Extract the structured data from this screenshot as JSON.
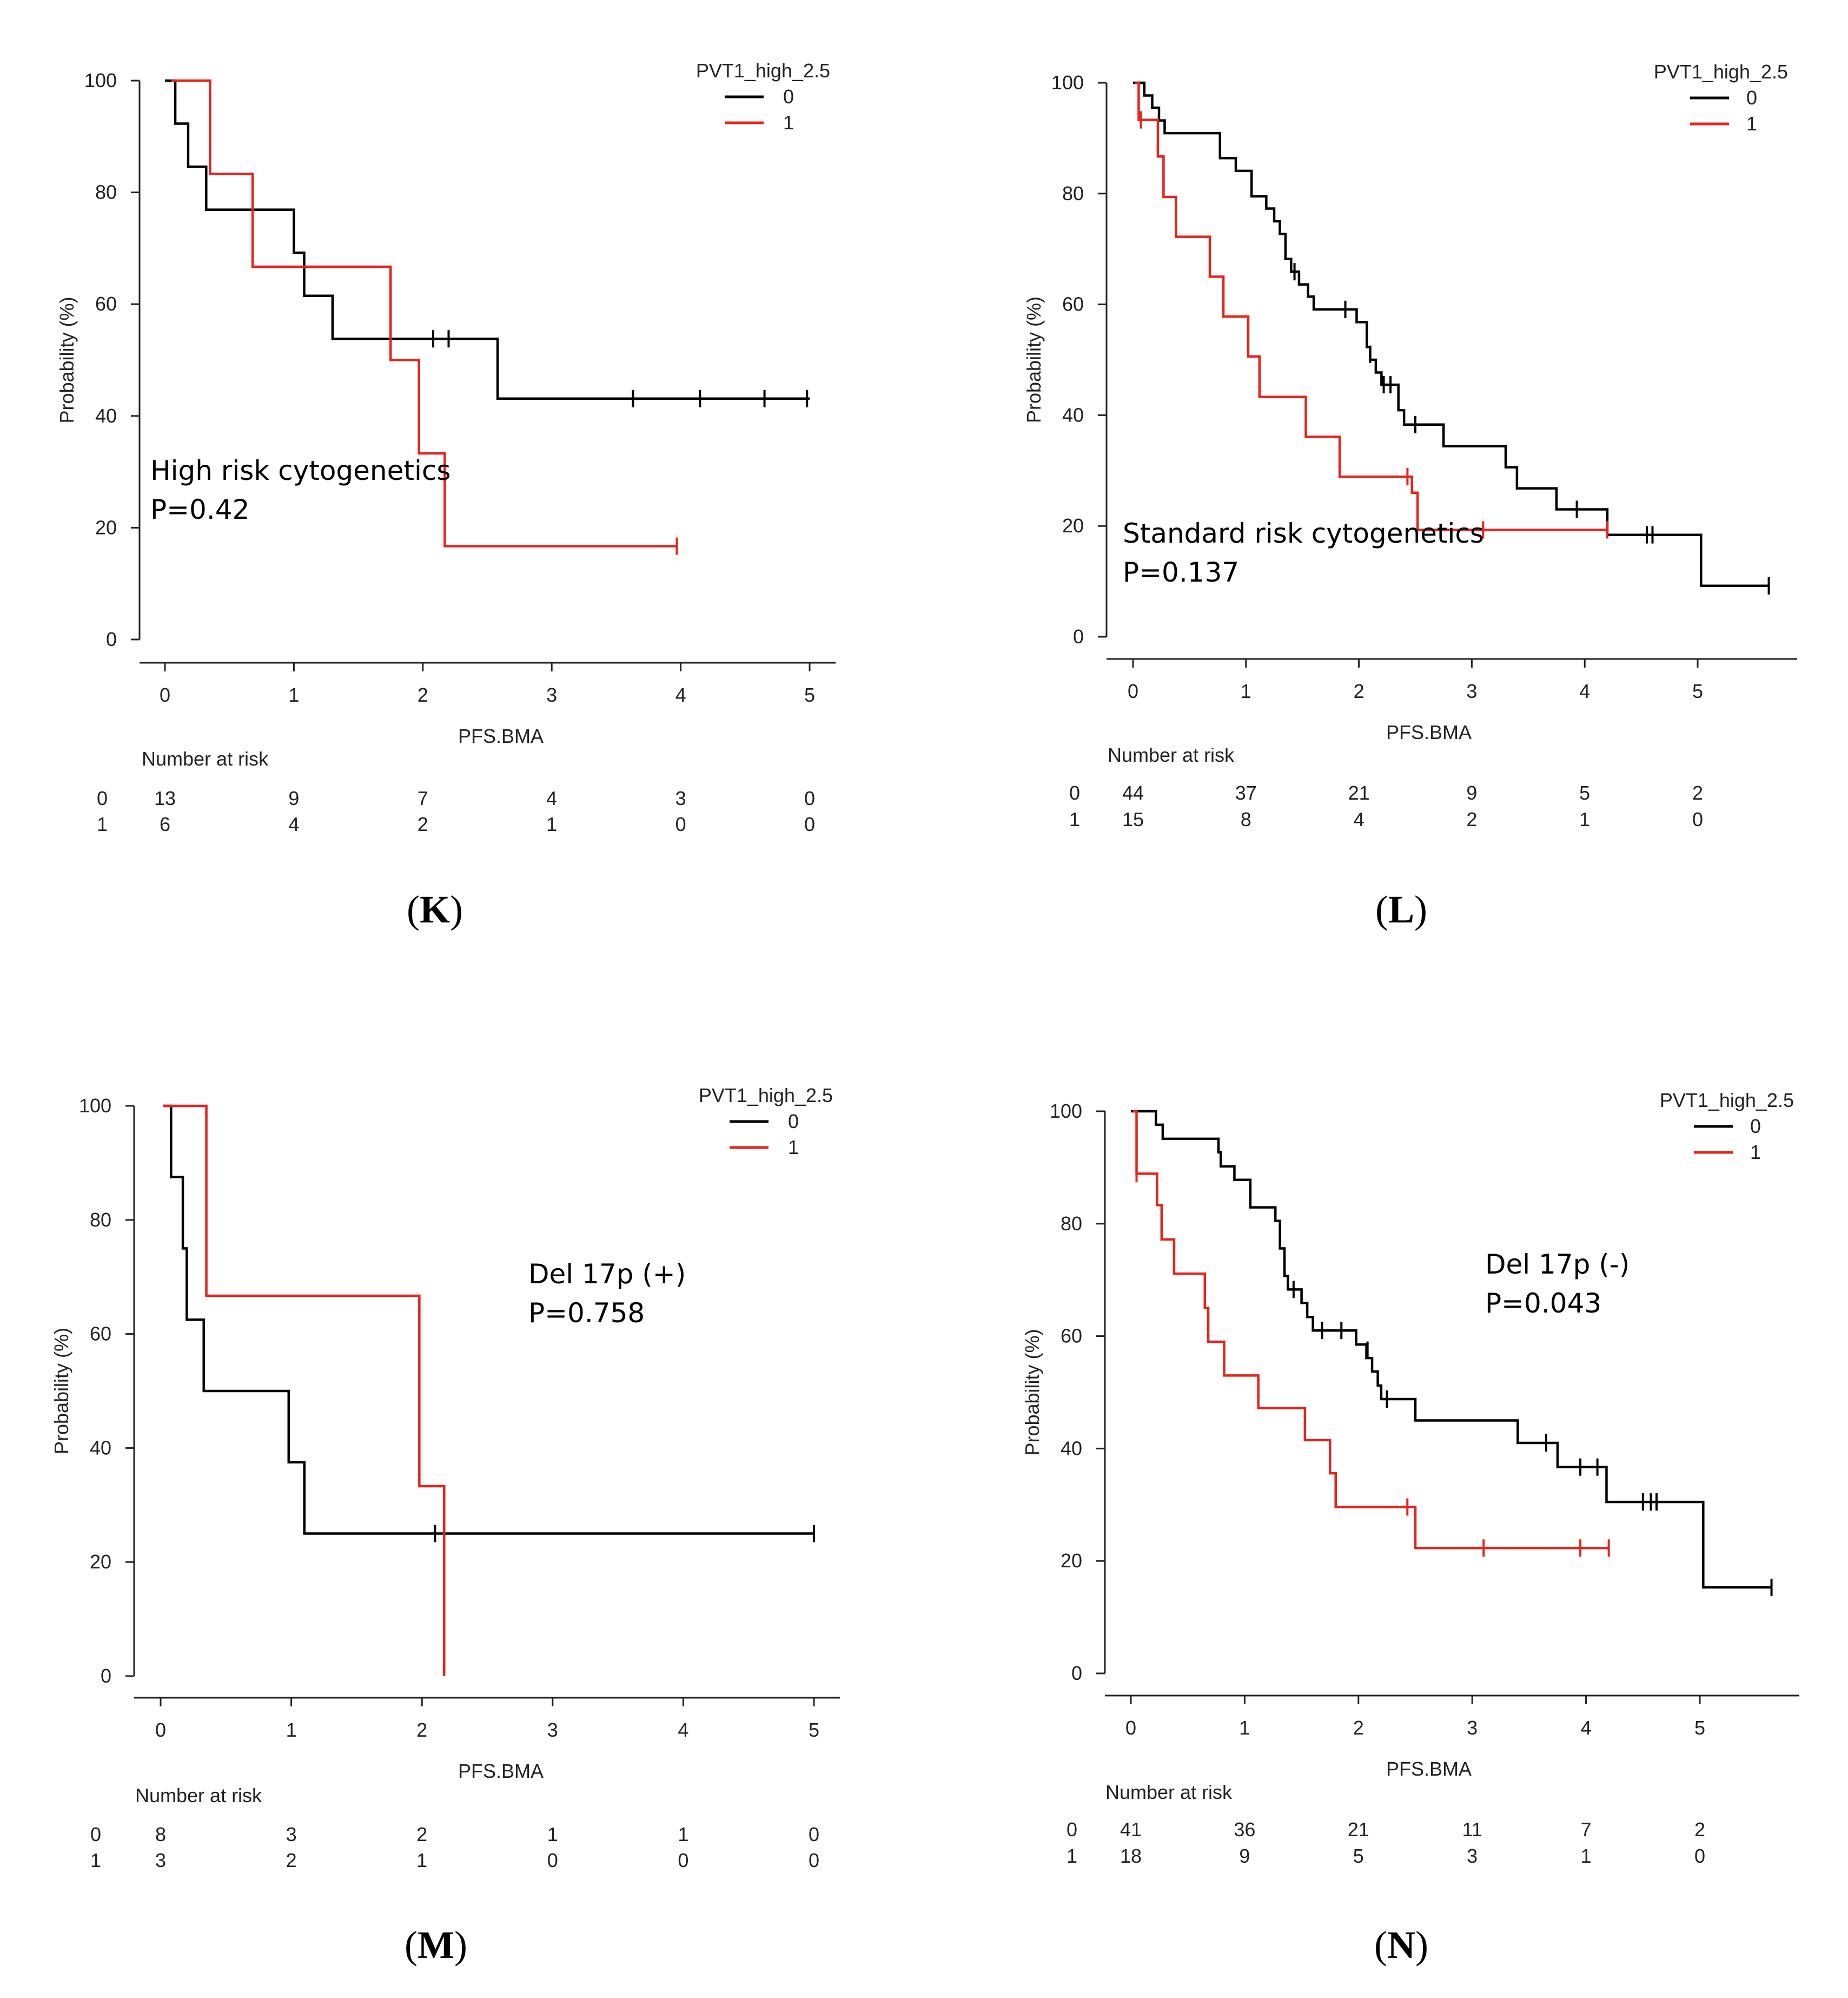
{
  "chart_data": [
    {
      "type": "line",
      "panel_label": "K",
      "xlabel": "PFS.BMA",
      "ylabel": "Probability (%)",
      "xlim": [
        0,
        5
      ],
      "ylim": [
        0,
        100
      ],
      "x_ticks": [
        "0",
        "1",
        "2",
        "3",
        "4",
        "5"
      ],
      "y_ticks": [
        "0",
        "20",
        "40",
        "60",
        "80",
        "100"
      ],
      "legend_title": "PVT1_high_2.5",
      "annotation": [
        "High risk cytogenetics",
        "P=0.42"
      ],
      "risk_table_title": "Number at risk",
      "risk_times": [
        0,
        1,
        2,
        3,
        4,
        5
      ],
      "series": [
        {
          "name": "0",
          "color": "#000000",
          "steps": [
            [
              0,
              100
            ],
            [
              0.08,
              92.3
            ],
            [
              0.18,
              84.6
            ],
            [
              0.32,
              76.9
            ],
            [
              1.0,
              69.2
            ],
            [
              1.08,
              61.5
            ],
            [
              1.3,
              53.8
            ],
            [
              2.58,
              43.1
            ],
            [
              5.0,
              43.1
            ]
          ],
          "censors": [
            [
              2.08,
              53.8
            ],
            [
              2.2,
              53.8
            ],
            [
              3.63,
              43.1
            ],
            [
              4.15,
              43.1
            ],
            [
              4.65,
              43.1
            ],
            [
              4.98,
              43.1
            ]
          ],
          "at_risk": [
            "13",
            "9",
            "7",
            "4",
            "3",
            "0"
          ]
        },
        {
          "name": "1",
          "color": "#e8231b",
          "steps": [
            [
              0.05,
              100
            ],
            [
              0.35,
              83.3
            ],
            [
              0.68,
              66.7
            ],
            [
              1.75,
              50.0
            ],
            [
              1.97,
              33.3
            ],
            [
              2.17,
              16.7
            ],
            [
              3.97,
              16.7
            ]
          ],
          "censors": [
            [
              3.97,
              16.7
            ]
          ],
          "at_risk": [
            "6",
            "4",
            "2",
            "1",
            "0",
            "0"
          ]
        }
      ]
    },
    {
      "type": "line",
      "panel_label": "L",
      "xlabel": "PFS.BMA",
      "ylabel": "Probability (%)",
      "xlim": [
        0,
        5.6
      ],
      "ylim": [
        0,
        100
      ],
      "x_ticks": [
        "0",
        "1",
        "2",
        "3",
        "4",
        "5"
      ],
      "y_ticks": [
        "0",
        "20",
        "40",
        "60",
        "80",
        "100"
      ],
      "legend_title": "PVT1_high_2.5",
      "annotation": [
        "Standard risk cytogenetics",
        "P=0.137"
      ],
      "risk_table_title": "Number at risk",
      "risk_times": [
        0,
        1,
        2,
        3,
        4,
        5
      ],
      "series": [
        {
          "name": "0",
          "color": "#000000",
          "steps": [
            [
              0,
              100
            ],
            [
              0.1,
              97.7
            ],
            [
              0.17,
              95.5
            ],
            [
              0.23,
              93.2
            ],
            [
              0.28,
              90.9
            ],
            [
              0.77,
              86.4
            ],
            [
              0.91,
              84.1
            ],
            [
              1.05,
              79.5
            ],
            [
              1.18,
              77.3
            ],
            [
              1.25,
              75.0
            ],
            [
              1.3,
              72.7
            ],
            [
              1.35,
              68.2
            ],
            [
              1.4,
              65.9
            ],
            [
              1.47,
              63.6
            ],
            [
              1.55,
              61.4
            ],
            [
              1.6,
              59.1
            ],
            [
              1.98,
              56.8
            ],
            [
              2.07,
              52.3
            ],
            [
              2.1,
              50.0
            ],
            [
              2.15,
              47.7
            ],
            [
              2.2,
              45.5
            ],
            [
              2.35,
              40.9
            ],
            [
              2.4,
              38.3
            ],
            [
              2.75,
              34.4
            ],
            [
              3.3,
              30.6
            ],
            [
              3.4,
              26.8
            ],
            [
              3.75,
              23.0
            ],
            [
              4.2,
              18.4
            ],
            [
              5.03,
              9.2
            ],
            [
              5.63,
              9.2
            ]
          ],
          "censors": [
            [
              1.43,
              65.9
            ],
            [
              1.88,
              59.1
            ],
            [
              2.1,
              51.0
            ],
            [
              2.22,
              45.5
            ],
            [
              2.28,
              45.5
            ],
            [
              2.5,
              38.3
            ],
            [
              3.93,
              23.0
            ],
            [
              4.55,
              18.4
            ],
            [
              4.6,
              18.4
            ],
            [
              5.63,
              9.2
            ]
          ],
          "at_risk": [
            "44",
            "37",
            "21",
            "9",
            "5",
            "2"
          ]
        },
        {
          "name": "1",
          "color": "#e8231b",
          "steps": [
            [
              0.02,
              100
            ],
            [
              0.05,
              93.3
            ],
            [
              0.22,
              86.7
            ],
            [
              0.27,
              79.4
            ],
            [
              0.38,
              72.2
            ],
            [
              0.68,
              65.0
            ],
            [
              0.8,
              57.8
            ],
            [
              1.02,
              50.6
            ],
            [
              1.12,
              43.3
            ],
            [
              1.53,
              36.1
            ],
            [
              1.83,
              28.9
            ],
            [
              2.47,
              26.0
            ],
            [
              2.52,
              19.3
            ],
            [
              4.2,
              19.3
            ]
          ],
          "censors": [
            [
              0.07,
              93.3
            ],
            [
              2.43,
              28.9
            ],
            [
              3.1,
              19.3
            ],
            [
              4.2,
              19.3
            ]
          ],
          "at_risk": [
            "15",
            "8",
            "4",
            "2",
            "1",
            "0"
          ]
        }
      ]
    },
    {
      "type": "line",
      "panel_label": "M",
      "xlabel": "PFS.BMA",
      "ylabel": "Probability (%)",
      "xlim": [
        0,
        5
      ],
      "ylim": [
        0,
        100
      ],
      "x_ticks": [
        "0",
        "1",
        "2",
        "3",
        "4",
        "5"
      ],
      "y_ticks": [
        "0",
        "20",
        "40",
        "60",
        "80",
        "100"
      ],
      "legend_title": "PVT1_high_2.5",
      "annotation": [
        "Del 17p (+)",
        "P=0.758"
      ],
      "risk_table_title": "Number at risk",
      "risk_times": [
        0,
        1,
        2,
        3,
        4,
        5
      ],
      "series": [
        {
          "name": "0",
          "color": "#000000",
          "steps": [
            [
              0.02,
              100
            ],
            [
              0.08,
              87.5
            ],
            [
              0.17,
              75.0
            ],
            [
              0.2,
              62.5
            ],
            [
              0.33,
              50.0
            ],
            [
              0.98,
              37.5
            ],
            [
              1.1,
              25.0
            ],
            [
              5.0,
              25.0
            ]
          ],
          "censors": [
            [
              2.1,
              25.0
            ],
            [
              5.0,
              25.0
            ]
          ],
          "at_risk": [
            "8",
            "3",
            "2",
            "1",
            "1",
            "0"
          ]
        },
        {
          "name": "1",
          "color": "#e8231b",
          "steps": [
            [
              0.02,
              100
            ],
            [
              0.35,
              66.7
            ],
            [
              1.98,
              33.3
            ],
            [
              2.17,
              0
            ]
          ],
          "censors": [],
          "at_risk": [
            "3",
            "2",
            "1",
            "0",
            "0",
            "0"
          ]
        }
      ]
    },
    {
      "type": "line",
      "panel_label": "N",
      "xlabel": "PFS.BMA",
      "ylabel": "Probability (%)",
      "xlim": [
        0,
        5.6
      ],
      "ylim": [
        0,
        100
      ],
      "x_ticks": [
        "0",
        "1",
        "2",
        "3",
        "4",
        "5"
      ],
      "y_ticks": [
        "0",
        "20",
        "40",
        "60",
        "80",
        "100"
      ],
      "legend_title": "PVT1_high_2.5",
      "annotation": [
        "Del 17p (-)",
        "P=0.043"
      ],
      "risk_table_title": "Number at risk",
      "risk_times": [
        0,
        1,
        2,
        3,
        4,
        5
      ],
      "series": [
        {
          "name": "0",
          "color": "#000000",
          "steps": [
            [
              0,
              100
            ],
            [
              0.22,
              97.6
            ],
            [
              0.28,
              95.1
            ],
            [
              0.77,
              92.7
            ],
            [
              0.79,
              90.2
            ],
            [
              0.91,
              87.8
            ],
            [
              1.05,
              82.9
            ],
            [
              1.27,
              80.5
            ],
            [
              1.31,
              75.6
            ],
            [
              1.35,
              70.7
            ],
            [
              1.38,
              68.3
            ],
            [
              1.5,
              65.9
            ],
            [
              1.55,
              63.4
            ],
            [
              1.6,
              61.0
            ],
            [
              1.98,
              58.5
            ],
            [
              2.07,
              56.1
            ],
            [
              2.12,
              53.7
            ],
            [
              2.17,
              51.2
            ],
            [
              2.2,
              48.8
            ],
            [
              2.5,
              45.0
            ],
            [
              3.4,
              41.0
            ],
            [
              3.75,
              36.7
            ],
            [
              4.18,
              30.5
            ],
            [
              5.03,
              15.3
            ],
            [
              5.63,
              15.3
            ]
          ],
          "censors": [
            [
              1.43,
              68.3
            ],
            [
              1.68,
              61.0
            ],
            [
              1.85,
              61.0
            ],
            [
              2.08,
              57.5
            ],
            [
              2.25,
              48.8
            ],
            [
              3.65,
              41.0
            ],
            [
              3.95,
              36.7
            ],
            [
              4.1,
              36.7
            ],
            [
              4.5,
              30.5
            ],
            [
              4.57,
              30.5
            ],
            [
              4.62,
              30.5
            ],
            [
              5.63,
              15.3
            ]
          ],
          "at_risk": [
            "41",
            "36",
            "21",
            "11",
            "7",
            "2"
          ]
        },
        {
          "name": "1",
          "color": "#e8231b",
          "steps": [
            [
              0.02,
              100
            ],
            [
              0.05,
              88.9
            ],
            [
              0.23,
              83.3
            ],
            [
              0.27,
              77.2
            ],
            [
              0.38,
              71.1
            ],
            [
              0.65,
              65.0
            ],
            [
              0.68,
              59.0
            ],
            [
              0.82,
              53.0
            ],
            [
              1.12,
              47.2
            ],
            [
              1.53,
              41.5
            ],
            [
              1.75,
              35.6
            ],
            [
              1.8,
              29.6
            ],
            [
              2.5,
              22.3
            ],
            [
              4.2,
              22.3
            ]
          ],
          "censors": [
            [
              0.05,
              88.9
            ],
            [
              2.43,
              29.6
            ],
            [
              3.1,
              22.3
            ],
            [
              3.95,
              22.3
            ],
            [
              4.2,
              22.3
            ]
          ],
          "at_risk": [
            "18",
            "9",
            "5",
            "3",
            "1",
            "0"
          ]
        }
      ]
    }
  ]
}
